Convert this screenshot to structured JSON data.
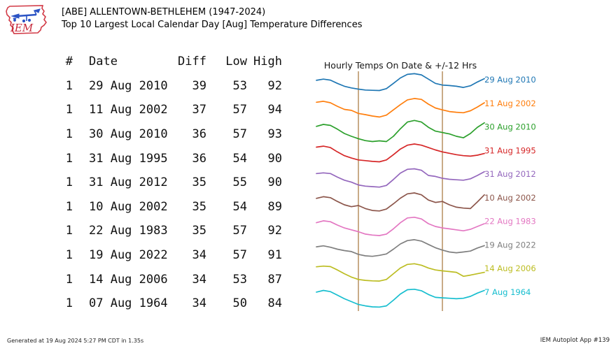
{
  "header": {
    "logo_text": "IEM",
    "title_line1": "[ABE] ALLENTOWN-BETHLEHEM (1947-2024)",
    "title_line2": "Top 10 Largest Local Calendar Day [Aug] Temperature Differences"
  },
  "table": {
    "columns": [
      "#",
      "Date",
      "Diff",
      "Low",
      "High"
    ],
    "rows": [
      {
        "rank": "1",
        "date": "29 Aug 2010",
        "diff": "39",
        "low": "53",
        "high": "92"
      },
      {
        "rank": "1",
        "date": "11 Aug 2002",
        "diff": "37",
        "low": "57",
        "high": "94"
      },
      {
        "rank": "1",
        "date": "30 Aug 2010",
        "diff": "36",
        "low": "57",
        "high": "93"
      },
      {
        "rank": "1",
        "date": "31 Aug 1995",
        "diff": "36",
        "low": "54",
        "high": "90"
      },
      {
        "rank": "1",
        "date": "31 Aug 2012",
        "diff": "35",
        "low": "55",
        "high": "90"
      },
      {
        "rank": "1",
        "date": "10 Aug 2002",
        "diff": "35",
        "low": "54",
        "high": "89"
      },
      {
        "rank": "1",
        "date": "22 Aug 1983",
        "diff": "35",
        "low": "57",
        "high": "92"
      },
      {
        "rank": "1",
        "date": "19 Aug 2022",
        "diff": "34",
        "low": "57",
        "high": "91"
      },
      {
        "rank": "1",
        "date": "14 Aug 2006",
        "diff": "34",
        "low": "53",
        "high": "87"
      },
      {
        "rank": "1",
        "date": "07 Aug 1964",
        "diff": "34",
        "low": "50",
        "high": "84"
      }
    ]
  },
  "chart_data": {
    "type": "line",
    "title": "Hourly Temps On Date & +/-12 Hrs",
    "x_window": "48 hours (calendar date plus/minus 12 hrs), 2-hour steps",
    "midnight_lines_at_hours": [
      12,
      36
    ],
    "midnight_line_color": "#c9ab87",
    "values_scale": "normalized 0-1 within each sparkline band (visual estimate of hourly temperature trace)",
    "series": [
      {
        "label": "29 Aug 2010",
        "color": "#1f77b4",
        "values": [
          0.65,
          0.7,
          0.66,
          0.52,
          0.4,
          0.33,
          0.28,
          0.24,
          0.23,
          0.22,
          0.3,
          0.52,
          0.75,
          0.9,
          0.93,
          0.88,
          0.7,
          0.52,
          0.45,
          0.43,
          0.4,
          0.35,
          0.42,
          0.58,
          0.72
        ]
      },
      {
        "label": "11 Aug 2002",
        "color": "#ff7f0e",
        "values": [
          0.72,
          0.76,
          0.7,
          0.55,
          0.42,
          0.38,
          0.25,
          0.2,
          0.14,
          0.1,
          0.18,
          0.4,
          0.62,
          0.82,
          0.88,
          0.84,
          0.64,
          0.48,
          0.4,
          0.33,
          0.3,
          0.28,
          0.36,
          0.52,
          0.7
        ]
      },
      {
        "label": "30 Aug 2010",
        "color": "#2ca02c",
        "values": [
          0.7,
          0.78,
          0.74,
          0.58,
          0.4,
          0.28,
          0.18,
          0.1,
          0.06,
          0.09,
          0.06,
          0.28,
          0.6,
          0.88,
          0.95,
          0.88,
          0.66,
          0.5,
          0.44,
          0.38,
          0.28,
          0.22,
          0.4,
          0.66,
          0.85
        ]
      },
      {
        "label": "31 Aug 1995",
        "color": "#d62728",
        "values": [
          0.82,
          0.86,
          0.8,
          0.62,
          0.46,
          0.36,
          0.28,
          0.25,
          0.22,
          0.2,
          0.28,
          0.5,
          0.74,
          0.9,
          0.95,
          0.9,
          0.8,
          0.7,
          0.62,
          0.56,
          0.5,
          0.46,
          0.44,
          0.48,
          0.55
        ]
      },
      {
        "label": "31 Aug 2012",
        "color": "#9467bd",
        "values": [
          0.7,
          0.73,
          0.7,
          0.55,
          0.42,
          0.34,
          0.22,
          0.17,
          0.15,
          0.13,
          0.2,
          0.45,
          0.72,
          0.88,
          0.9,
          0.84,
          0.62,
          0.58,
          0.5,
          0.46,
          0.44,
          0.42,
          0.48,
          0.62,
          0.78
        ]
      },
      {
        "label": "10 Aug 2002",
        "color": "#8c564b",
        "values": [
          0.65,
          0.72,
          0.68,
          0.52,
          0.38,
          0.3,
          0.35,
          0.22,
          0.14,
          0.12,
          0.2,
          0.42,
          0.66,
          0.84,
          0.88,
          0.8,
          0.58,
          0.48,
          0.52,
          0.38,
          0.28,
          0.24,
          0.22,
          0.5,
          0.8
        ]
      },
      {
        "label": "22 Aug 1983",
        "color": "#e377c2",
        "values": [
          0.62,
          0.7,
          0.66,
          0.52,
          0.4,
          0.32,
          0.24,
          0.14,
          0.1,
          0.08,
          0.14,
          0.36,
          0.62,
          0.82,
          0.85,
          0.78,
          0.58,
          0.46,
          0.4,
          0.36,
          0.32,
          0.28,
          0.34,
          0.46,
          0.58
        ]
      },
      {
        "label": "19 Aug 2022",
        "color": "#7f7f7f",
        "values": [
          0.6,
          0.64,
          0.58,
          0.5,
          0.44,
          0.4,
          0.28,
          0.22,
          0.2,
          0.24,
          0.3,
          0.5,
          0.72,
          0.86,
          0.9,
          0.84,
          0.7,
          0.56,
          0.46,
          0.38,
          0.35,
          0.38,
          0.42,
          0.55,
          0.65
        ]
      },
      {
        "label": "14 Aug 2006",
        "color": "#bcbd22",
        "values": [
          0.75,
          0.78,
          0.76,
          0.62,
          0.46,
          0.32,
          0.22,
          0.18,
          0.16,
          0.15,
          0.22,
          0.46,
          0.7,
          0.85,
          0.88,
          0.82,
          0.7,
          0.62,
          0.58,
          0.55,
          0.52,
          0.35,
          0.4,
          0.46,
          0.52
        ]
      },
      {
        "label": "7 Aug 1964",
        "color": "#17becf",
        "values": [
          0.68,
          0.75,
          0.7,
          0.55,
          0.4,
          0.28,
          0.16,
          0.1,
          0.06,
          0.05,
          0.1,
          0.34,
          0.6,
          0.78,
          0.8,
          0.74,
          0.58,
          0.46,
          0.44,
          0.42,
          0.4,
          0.42,
          0.5,
          0.64,
          0.75
        ]
      }
    ]
  },
  "footer": {
    "left": "Generated at 19 Aug 2024 5:27 PM CDT in 1.35s",
    "right": "IEM Autoplot App #139"
  }
}
